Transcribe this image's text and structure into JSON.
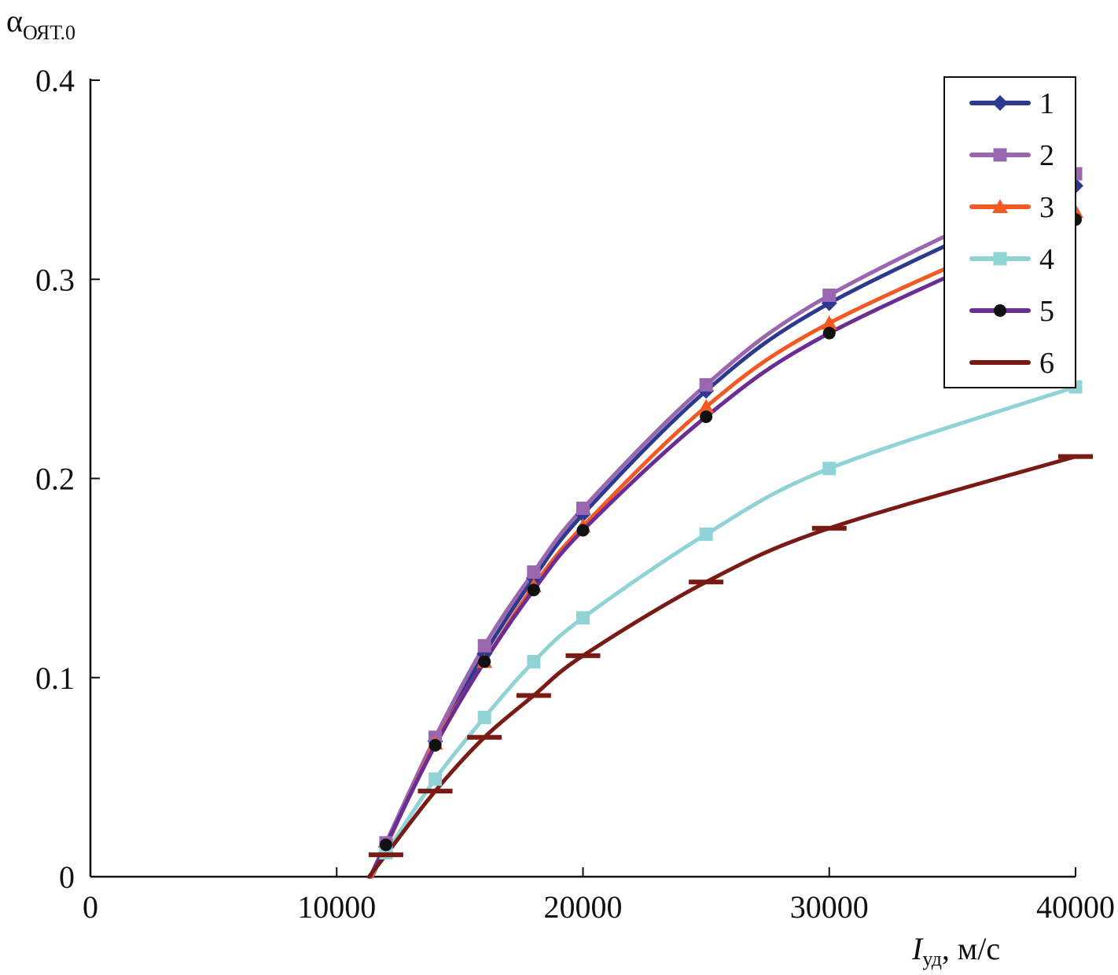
{
  "chart_data": {
    "type": "line",
    "title": "",
    "ylabel": {
      "main": "α",
      "sub": "ОЯТ.0"
    },
    "xlabel": {
      "main": "I",
      "sub": "уд",
      "unit": ", м/с"
    },
    "xlim": [
      0,
      40000
    ],
    "ylim": [
      0,
      0.4
    ],
    "xticks": [
      0,
      10000,
      20000,
      30000,
      40000
    ],
    "yticks": [
      0,
      0.1,
      0.2,
      0.3,
      0.4
    ],
    "xtick_labels": [
      "0",
      "10000",
      "20000",
      "30000",
      "40000"
    ],
    "ytick_labels": [
      "0",
      "0.1",
      "0.2",
      "0.3",
      "0.4"
    ],
    "grid": false,
    "legend_position": "top-right",
    "x": [
      12000,
      14000,
      16000,
      18000,
      20000,
      25000,
      30000,
      40000
    ],
    "series": [
      {
        "name": "1",
        "color": "#2b3a8f",
        "marker": "diamond",
        "values": [
          0.015,
          0.068,
          0.112,
          0.15,
          0.182,
          0.244,
          0.288,
          0.347
        ]
      },
      {
        "name": "2",
        "color": "#9a66b0",
        "marker": "square",
        "values": [
          0.017,
          0.07,
          0.116,
          0.153,
          0.185,
          0.247,
          0.292,
          0.353
        ]
      },
      {
        "name": "3",
        "color": "#f25a24",
        "marker": "triangle",
        "values": [
          0.015,
          0.067,
          0.108,
          0.146,
          0.176,
          0.236,
          0.278,
          0.334
        ]
      },
      {
        "name": "4",
        "color": "#8fd3d6",
        "marker": "square",
        "values": [
          0.012,
          0.049,
          0.08,
          0.108,
          0.13,
          0.172,
          0.205,
          0.246
        ]
      },
      {
        "name": "5",
        "color": "#6a2d96",
        "marker": "circle",
        "values": [
          0.016,
          0.066,
          0.108,
          0.144,
          0.174,
          0.231,
          0.273,
          0.33
        ]
      },
      {
        "name": "6",
        "color": "#7a1a14",
        "marker": "dash",
        "values": [
          0.011,
          0.043,
          0.07,
          0.091,
          0.111,
          0.148,
          0.175,
          0.211
        ]
      }
    ]
  }
}
